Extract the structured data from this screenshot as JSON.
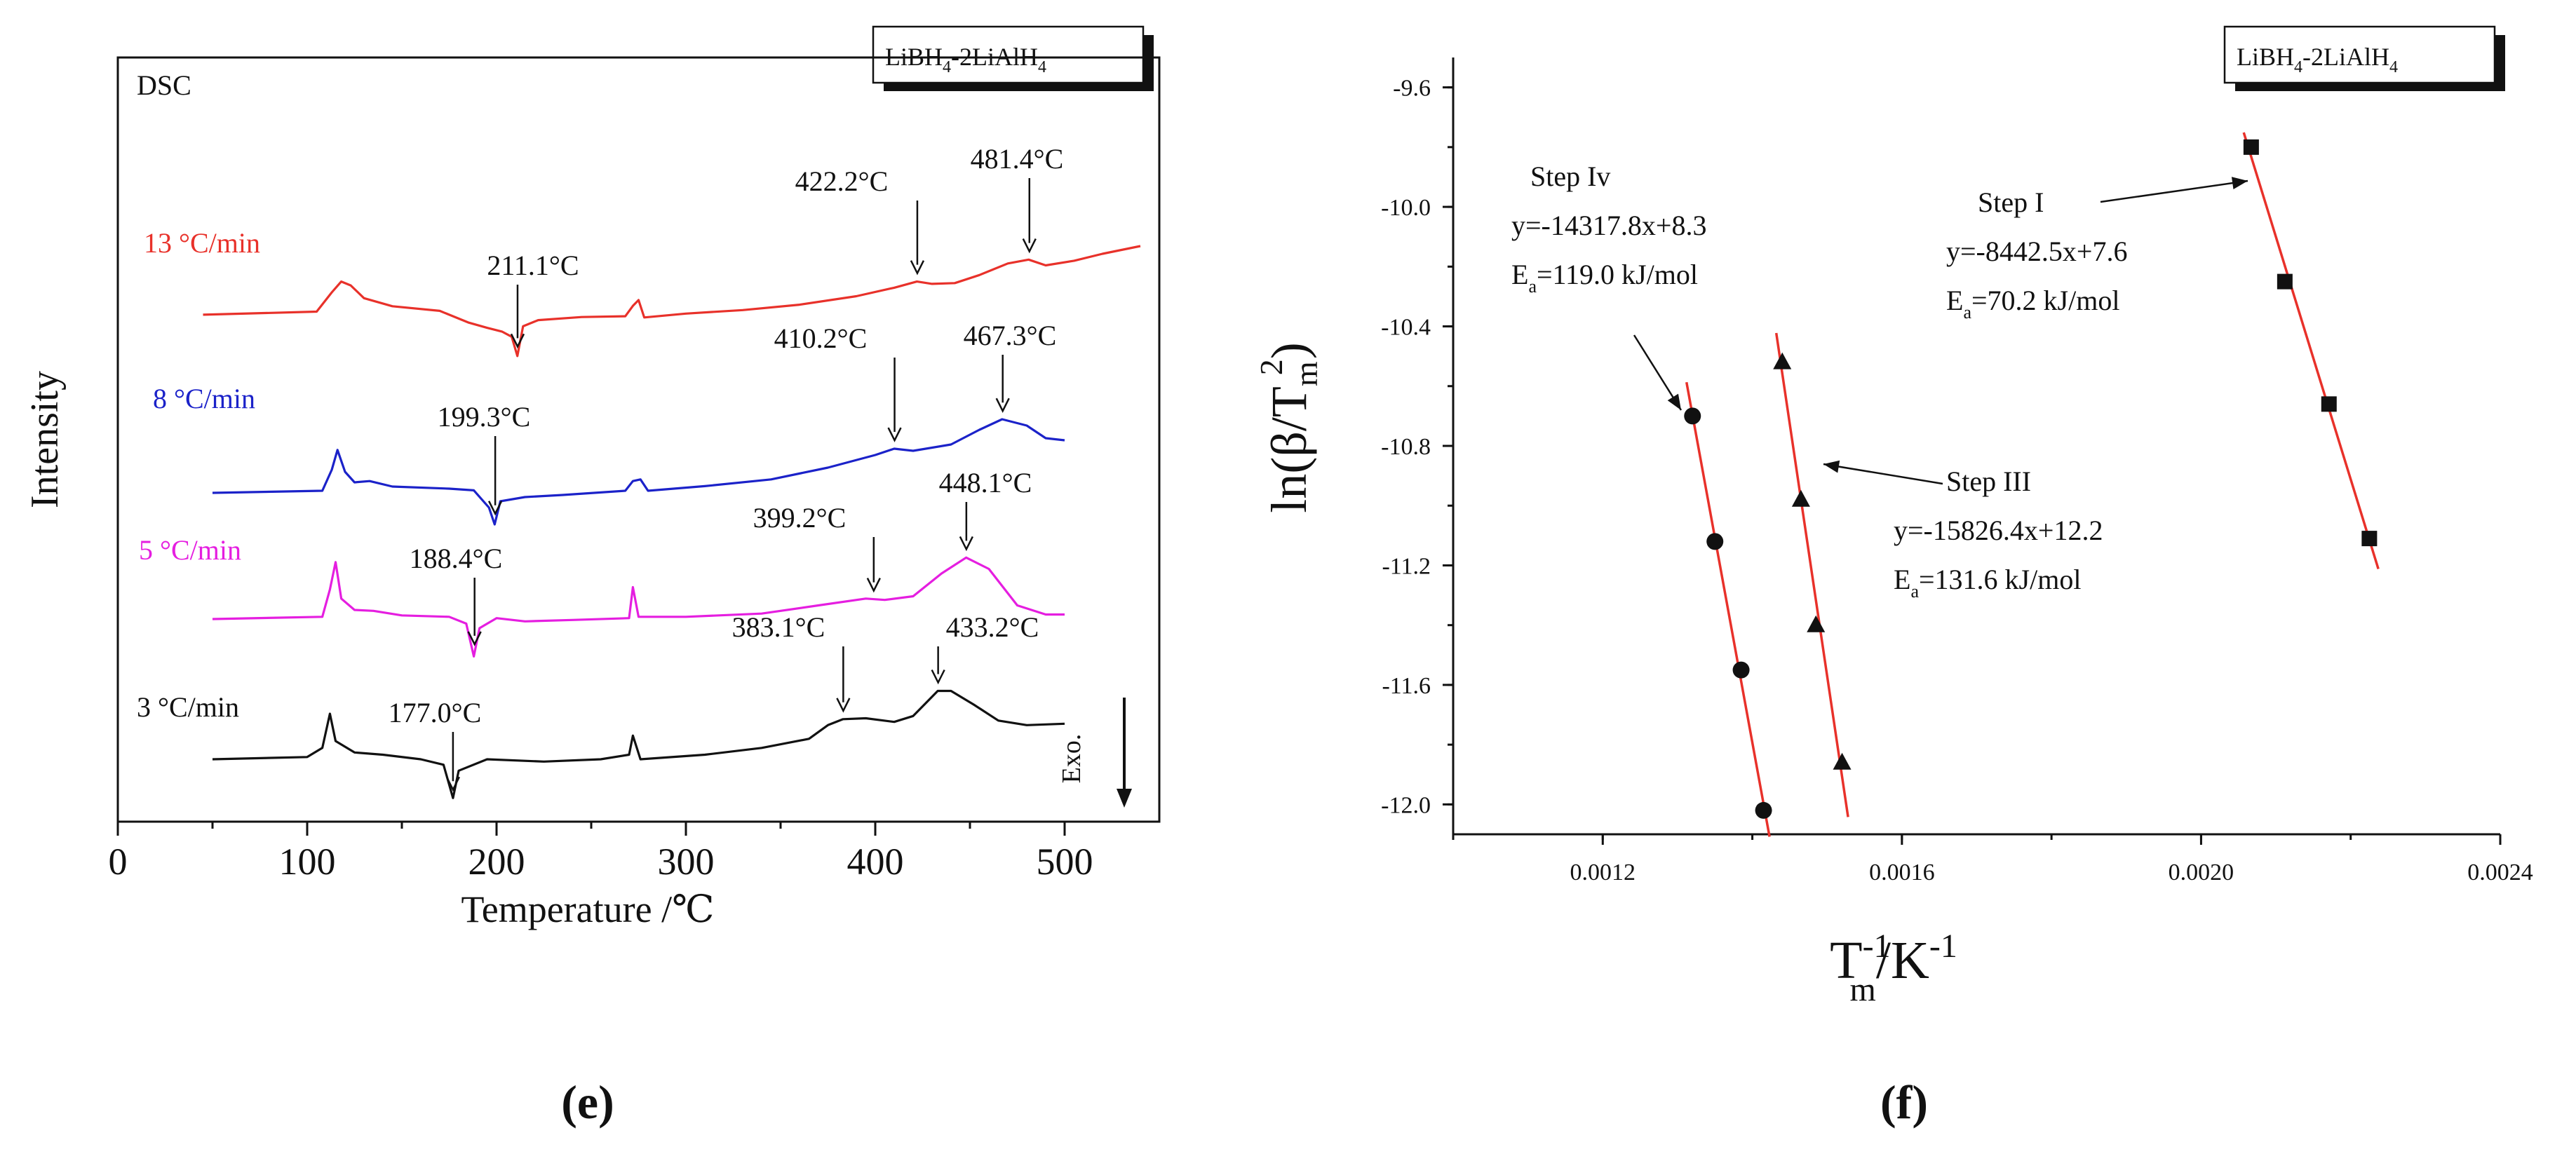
{
  "chart_data": [
    {
      "id": "e",
      "type": "line",
      "panel_label": "e",
      "tag": {
        "base": "LiBH",
        "sub1": "4",
        "mid": "-2LiAlH",
        "sub2": "4"
      },
      "title": "DSC",
      "xlabel": "Temperature /℃",
      "ylabel": "Intensity",
      "xlim": [
        0,
        550
      ],
      "xticks": [
        0,
        100,
        200,
        300,
        400,
        500
      ],
      "grid": false,
      "exo_label": "Exo.",
      "series": [
        {
          "name": "13 °C/min",
          "color": "#e8312a",
          "points": [
            [
              45,
              0.02
            ],
            [
              105,
              0.1
            ],
            [
              113,
              0.6
            ],
            [
              118,
              0.88
            ],
            [
              123,
              0.78
            ],
            [
              130,
              0.45
            ],
            [
              145,
              0.24
            ],
            [
              170,
              0.12
            ],
            [
              185,
              -0.18
            ],
            [
              195,
              -0.32
            ],
            [
              203,
              -0.42
            ],
            [
              208,
              -0.55
            ],
            [
              211,
              -1.05
            ],
            [
              214,
              -0.28
            ],
            [
              222,
              -0.12
            ],
            [
              245,
              -0.04
            ],
            [
              268,
              -0.02
            ],
            [
              272,
              0.25
            ],
            [
              275,
              0.4
            ],
            [
              278,
              -0.05
            ],
            [
              300,
              0.05
            ],
            [
              330,
              0.14
            ],
            [
              360,
              0.28
            ],
            [
              390,
              0.5
            ],
            [
              410,
              0.72
            ],
            [
              422,
              0.88
            ],
            [
              430,
              0.82
            ],
            [
              442,
              0.84
            ],
            [
              455,
              1.05
            ],
            [
              470,
              1.35
            ],
            [
              481,
              1.45
            ],
            [
              490,
              1.3
            ],
            [
              505,
              1.42
            ],
            [
              520,
              1.6
            ],
            [
              540,
              1.8
            ]
          ],
          "annotations": [
            {
              "label": "211.1°C",
              "x": 211.1
            },
            {
              "label": "422.2°C",
              "x": 422.2
            },
            {
              "label": "481.4°C",
              "x": 481.4
            }
          ]
        },
        {
          "name": "8 °C/min",
          "color": "#1b22c9",
          "points": [
            [
              50,
              0.0
            ],
            [
              108,
              0.05
            ],
            [
              113,
              0.55
            ],
            [
              116,
              1.02
            ],
            [
              120,
              0.5
            ],
            [
              125,
              0.25
            ],
            [
              133,
              0.28
            ],
            [
              145,
              0.15
            ],
            [
              175,
              0.1
            ],
            [
              188,
              0.06
            ],
            [
              196,
              -0.35
            ],
            [
              199,
              -0.75
            ],
            [
              202,
              -0.2
            ],
            [
              215,
              -0.1
            ],
            [
              235,
              -0.05
            ],
            [
              268,
              0.05
            ],
            [
              272,
              0.28
            ],
            [
              276,
              0.32
            ],
            [
              280,
              0.05
            ],
            [
              310,
              0.16
            ],
            [
              345,
              0.32
            ],
            [
              375,
              0.6
            ],
            [
              400,
              0.9
            ],
            [
              410,
              1.05
            ],
            [
              420,
              1.0
            ],
            [
              440,
              1.15
            ],
            [
              455,
              1.5
            ],
            [
              467,
              1.75
            ],
            [
              480,
              1.6
            ],
            [
              490,
              1.3
            ],
            [
              500,
              1.25
            ]
          ],
          "annotations": [
            {
              "label": "199.3°C",
              "x": 199.3
            },
            {
              "label": "410.2°C",
              "x": 410.2
            },
            {
              "label": "467.3°C",
              "x": 467.3
            }
          ]
        },
        {
          "name": "5 °C/min",
          "color": "#e51ee0",
          "points": [
            [
              50,
              0.0
            ],
            [
              108,
              0.05
            ],
            [
              112,
              0.65
            ],
            [
              115,
              1.25
            ],
            [
              118,
              0.45
            ],
            [
              125,
              0.2
            ],
            [
              135,
              0.18
            ],
            [
              150,
              0.08
            ],
            [
              175,
              0.05
            ],
            [
              184,
              -0.1
            ],
            [
              188,
              -0.82
            ],
            [
              191,
              -0.2
            ],
            [
              200,
              0.02
            ],
            [
              215,
              -0.05
            ],
            [
              240,
              -0.02
            ],
            [
              270,
              0.02
            ],
            [
              272,
              0.7
            ],
            [
              275,
              0.05
            ],
            [
              300,
              0.05
            ],
            [
              340,
              0.12
            ],
            [
              370,
              0.3
            ],
            [
              395,
              0.45
            ],
            [
              405,
              0.42
            ],
            [
              420,
              0.5
            ],
            [
              435,
              1.0
            ],
            [
              448,
              1.35
            ],
            [
              460,
              1.1
            ],
            [
              475,
              0.3
            ],
            [
              490,
              0.1
            ],
            [
              500,
              0.1
            ]
          ],
          "annotations": [
            {
              "label": "188.4°C",
              "x": 188.4
            },
            {
              "label": "399.2°C",
              "x": 399.2
            },
            {
              "label": "448.1°C",
              "x": 448.1
            }
          ]
        },
        {
          "name": "3 °C/min",
          "color": "#111111",
          "points": [
            [
              50,
              0.0
            ],
            [
              100,
              0.05
            ],
            [
              108,
              0.25
            ],
            [
              112,
              1.0
            ],
            [
              115,
              0.4
            ],
            [
              125,
              0.15
            ],
            [
              140,
              0.1
            ],
            [
              160,
              0.0
            ],
            [
              172,
              -0.12
            ],
            [
              177,
              -0.85
            ],
            [
              180,
              -0.25
            ],
            [
              195,
              0.0
            ],
            [
              225,
              -0.05
            ],
            [
              255,
              0.0
            ],
            [
              270,
              0.1
            ],
            [
              272,
              0.52
            ],
            [
              276,
              0.0
            ],
            [
              310,
              0.1
            ],
            [
              340,
              0.25
            ],
            [
              365,
              0.45
            ],
            [
              375,
              0.75
            ],
            [
              383,
              0.88
            ],
            [
              395,
              0.9
            ],
            [
              410,
              0.82
            ],
            [
              420,
              0.95
            ],
            [
              433,
              1.5
            ],
            [
              440,
              1.5
            ],
            [
              452,
              1.2
            ],
            [
              465,
              0.85
            ],
            [
              480,
              0.75
            ],
            [
              500,
              0.78
            ]
          ],
          "annotations": [
            {
              "label": "177.0°C",
              "x": 177.0
            },
            {
              "label": "383.1°C",
              "x": 383.1
            },
            {
              "label": "433.2°C",
              "x": 433.2
            }
          ]
        }
      ]
    },
    {
      "id": "f",
      "type": "scatter",
      "panel_label": "f",
      "tag": {
        "base": "LiBH",
        "sub1": "4",
        "mid": "-2LiAlH",
        "sub2": "4"
      },
      "xlabel": {
        "base": "T",
        "sup": "-1",
        "sub": "m",
        "rest": "/K",
        "rest_sup": "-1"
      },
      "ylabel": {
        "pre": "ln(β/T",
        "sub": "m",
        "sup": "2",
        "post": ")"
      },
      "xlim": [
        0.001,
        0.0024
      ],
      "ylim": [
        -12.1,
        -9.5
      ],
      "xticks": [
        "0.0012",
        "0.0016",
        "0.0020",
        "0.0024"
      ],
      "yticks": [
        "-9.6",
        "-10.0",
        "-10.4",
        "-10.8",
        "-11.2",
        "-11.6",
        "-12.0"
      ],
      "fit_color": "#e8312a",
      "grid": false,
      "series": [
        {
          "name": "Step I",
          "marker": "square",
          "equation": "y=-8442.5x+7.6",
          "ea_value": "=70.2 kJ/mol",
          "x": [
            0.002067,
            0.002112,
            0.002171,
            0.002225
          ],
          "y": [
            -9.8,
            -10.25,
            -10.66,
            -11.11
          ],
          "fit_x": [
            0.002057,
            0.002237
          ]
        },
        {
          "name": "Step III",
          "marker": "triangle",
          "equation": "y=-15826.4x+12.2",
          "ea_value": "=131.6 kJ/mol",
          "x": [
            0.00144,
            0.001465,
            0.001485,
            0.00152
          ],
          "y": [
            -10.52,
            -10.98,
            -11.4,
            -11.86
          ],
          "fit_x": [
            0.001432,
            0.001528
          ]
        },
        {
          "name": "Step Iv",
          "marker": "circle",
          "equation": "y=-14317.8x+8.3",
          "ea_value": "=119.0 kJ/mol",
          "x": [
            0.00132,
            0.00135,
            0.001385,
            0.001415
          ],
          "y": [
            -10.7,
            -11.12,
            -11.55,
            -12.02
          ],
          "fit_x": [
            0.001312,
            0.001423
          ]
        }
      ]
    }
  ]
}
